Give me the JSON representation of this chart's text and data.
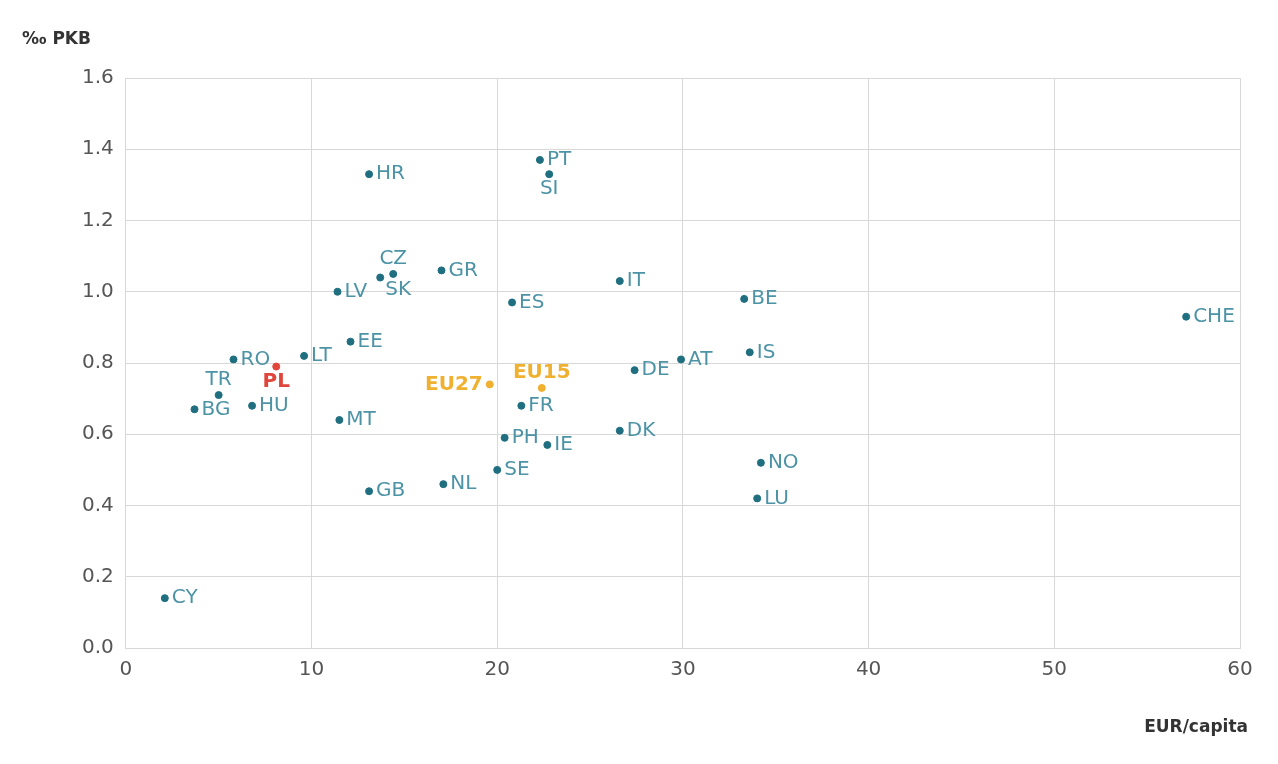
{
  "chart_data": {
    "type": "scatter",
    "xlabel": "EUR/capita",
    "ylabel": "‰ PKB",
    "xlim": [
      0,
      60
    ],
    "xticks": [
      0,
      10,
      20,
      30,
      40,
      50,
      60
    ],
    "ylim": [
      0,
      1.6
    ],
    "yticks": [
      {
        "value": 0,
        "label": "0.0"
      },
      {
        "value": 0.2,
        "label": "0.2"
      },
      {
        "value": 0.4,
        "label": "0.4"
      },
      {
        "value": 0.6,
        "label": "0.6"
      },
      {
        "value": 0.8,
        "label": "0.8"
      },
      {
        "value": 1.0,
        "label": "1.0"
      },
      {
        "value": 1.2,
        "label": "1.2"
      },
      {
        "value": 1.4,
        "label": "1.4"
      },
      {
        "value": 1.6,
        "label": "1.6"
      }
    ],
    "grid": true,
    "legend": false,
    "marker": "circle",
    "series": [
      {
        "color": "#1f6f80",
        "x": [
          2.1,
          3.7,
          5.0,
          5.8,
          6.8,
          9.6,
          11.4,
          11.5,
          12.1,
          13.1,
          13.1,
          13.7,
          14.4,
          17.0,
          17.1,
          20.0,
          20.4,
          20.8,
          21.3,
          22.7,
          22.3,
          22.8,
          26.6,
          26.6,
          27.4,
          29.9,
          33.3,
          33.6,
          34.2,
          34.0,
          57.1
        ],
        "values": [
          0.14,
          0.67,
          0.71,
          0.81,
          0.68,
          0.82,
          1.0,
          0.64,
          0.86,
          0.44,
          1.33,
          1.04,
          1.05,
          1.06,
          0.46,
          0.5,
          0.59,
          0.97,
          0.68,
          0.57,
          1.37,
          1.33,
          0.61,
          1.03,
          0.78,
          0.81,
          0.98,
          0.83,
          0.52,
          0.42,
          0.93
        ]
      },
      {
        "name": "PL",
        "color": "#e0463c",
        "x": [
          8.1
        ],
        "values": [
          0.79
        ]
      },
      {
        "name": "EU27",
        "color": "#f0b030",
        "x": [
          19.6
        ],
        "values": [
          0.74
        ]
      },
      {
        "name": "EU15",
        "color": "#f0b030",
        "x": [
          22.4
        ],
        "values": [
          0.73
        ]
      }
    ],
    "annotations": [
      {
        "text": "CY",
        "x": 2.1,
        "y": 0.14
      },
      {
        "text": "BG",
        "x": 3.7,
        "y": 0.67
      },
      {
        "text": "TR",
        "x": 5.0,
        "y": 0.71
      },
      {
        "text": "RO",
        "x": 5.8,
        "y": 0.81
      },
      {
        "text": "HU",
        "x": 6.8,
        "y": 0.68
      },
      {
        "text": "LT",
        "x": 9.6,
        "y": 0.82
      },
      {
        "text": "LV",
        "x": 11.4,
        "y": 1.0
      },
      {
        "text": "MT",
        "x": 11.5,
        "y": 0.64
      },
      {
        "text": "EE",
        "x": 12.1,
        "y": 0.86
      },
      {
        "text": "GB",
        "x": 13.1,
        "y": 0.44
      },
      {
        "text": "HR",
        "x": 13.1,
        "y": 1.33
      },
      {
        "text": "SK",
        "x": 13.7,
        "y": 1.04
      },
      {
        "text": "CZ",
        "x": 14.4,
        "y": 1.05
      },
      {
        "text": "GR",
        "x": 17.0,
        "y": 1.06
      },
      {
        "text": "NL",
        "x": 17.1,
        "y": 0.46
      },
      {
        "text": "SE",
        "x": 20.0,
        "y": 0.5
      },
      {
        "text": "PH",
        "x": 20.4,
        "y": 0.59
      },
      {
        "text": "ES",
        "x": 20.8,
        "y": 0.97
      },
      {
        "text": "FR",
        "x": 21.3,
        "y": 0.68
      },
      {
        "text": "IE",
        "x": 22.7,
        "y": 0.57
      },
      {
        "text": "PT",
        "x": 22.3,
        "y": 1.37
      },
      {
        "text": "SI",
        "x": 22.8,
        "y": 1.33
      },
      {
        "text": "DK",
        "x": 26.6,
        "y": 0.61
      },
      {
        "text": "IT",
        "x": 26.6,
        "y": 1.03
      },
      {
        "text": "DE",
        "x": 27.4,
        "y": 0.78
      },
      {
        "text": "AT",
        "x": 29.9,
        "y": 0.81
      },
      {
        "text": "BE",
        "x": 33.3,
        "y": 0.98
      },
      {
        "text": "IS",
        "x": 33.6,
        "y": 0.83
      },
      {
        "text": "NO",
        "x": 34.2,
        "y": 0.52
      },
      {
        "text": "LU",
        "x": 34.0,
        "y": 0.42
      },
      {
        "text": "CHE",
        "x": 57.1,
        "y": 0.93
      }
    ]
  }
}
